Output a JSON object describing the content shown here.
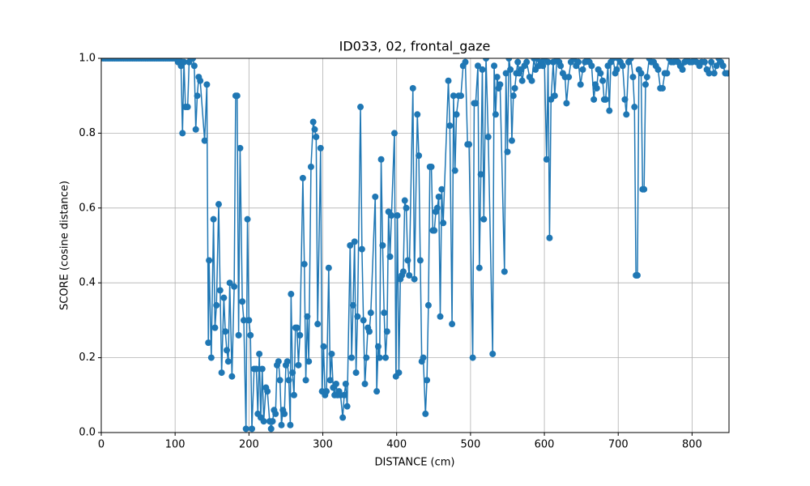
{
  "chart_data": {
    "type": "line",
    "title": "ID033, 02, frontal_gaze",
    "xlabel": "DISTANCE (cm)",
    "ylabel": "SCORE (cosine distance)",
    "xlim": [
      0,
      850
    ],
    "ylim": [
      0,
      1
    ],
    "grid": true,
    "xticks": [
      0,
      100,
      200,
      300,
      400,
      500,
      600,
      700,
      800
    ],
    "yticks": [
      {
        "value": 0,
        "label": "0.0"
      },
      0.2,
      0.4,
      0.6,
      0.8,
      {
        "value": 1,
        "label": "1.0"
      }
    ],
    "series": [
      {
        "color": "#1f77b4",
        "x": [
          0,
          3,
          6,
          9,
          12,
          15,
          18,
          21,
          24,
          27,
          30,
          33,
          36,
          39,
          42,
          45,
          48,
          51,
          54,
          57,
          60,
          63,
          66,
          69,
          72,
          75,
          78,
          81,
          84,
          87,
          90,
          93,
          96,
          99,
          102,
          104,
          106,
          108,
          110,
          112,
          114,
          117,
          119,
          121,
          124,
          126,
          128,
          130,
          132,
          134,
          140,
          143,
          145,
          146,
          149,
          152,
          154,
          156,
          159,
          161,
          163,
          166,
          168,
          170,
          172,
          174,
          177,
          180,
          182,
          184,
          186,
          188,
          191,
          193,
          196,
          198,
          200,
          202,
          204,
          207,
          210,
          212,
          214,
          216,
          218,
          220,
          223,
          225,
          228,
          230,
          232,
          234,
          236,
          238,
          240,
          242,
          244,
          246,
          248,
          250,
          252,
          254,
          256,
          257,
          259,
          261,
          263,
          265,
          267,
          269,
          273,
          275,
          277,
          279,
          281,
          284,
          287,
          289,
          291,
          293,
          297,
          299,
          301,
          303,
          305,
          308,
          310,
          312,
          314,
          316,
          318,
          320,
          322,
          324,
          327,
          329,
          331,
          333,
          337,
          339,
          341,
          343,
          345,
          347,
          351,
          353,
          355,
          357,
          359,
          361,
          363,
          365,
          371,
          373,
          375,
          377,
          379,
          381,
          383,
          385,
          387,
          389,
          391,
          393,
          397,
          399,
          401,
          403,
          405,
          407,
          409,
          411,
          413,
          415,
          417,
          422,
          424,
          428,
          430,
          432,
          434,
          436,
          439,
          441,
          443,
          445,
          447,
          449,
          451,
          453,
          455,
          457,
          459,
          461,
          463,
          470,
          472,
          475,
          477,
          479,
          481,
          484,
          487,
          490,
          493,
          496,
          498,
          503,
          505,
          507,
          510,
          512,
          514,
          516,
          518,
          521,
          524,
          530,
          532,
          534,
          536,
          538,
          540,
          546,
          548,
          550,
          552,
          554,
          556,
          558,
          560,
          562,
          564,
          566,
          568,
          570,
          573,
          576,
          580,
          583,
          586,
          588,
          590,
          593,
          596,
          598,
          600,
          603,
          605,
          607,
          609,
          612,
          614,
          617,
          620,
          622,
          625,
          628,
          630,
          633,
          636,
          640,
          643,
          646,
          649,
          652,
          655,
          658,
          661,
          664,
          667,
          669,
          671,
          673,
          676,
          679,
          681,
          683,
          686,
          688,
          690,
          693,
          696,
          698,
          700,
          703,
          706,
          709,
          711,
          714,
          717,
          720,
          722,
          724,
          726,
          728,
          731,
          733,
          735,
          737,
          739,
          742,
          745,
          748,
          751,
          754,
          757,
          760,
          763,
          766,
          769,
          772,
          775,
          778,
          781,
          784,
          787,
          790,
          793,
          797,
          800,
          803,
          806,
          810,
          813,
          817,
          820,
          823,
          826,
          830,
          833,
          836,
          839,
          842,
          845,
          848
        ],
        "values": [
          1,
          1,
          1,
          1,
          1,
          1,
          1,
          1,
          1,
          1,
          1,
          1,
          1,
          1,
          1,
          1,
          1,
          1,
          1,
          1,
          1,
          1,
          1,
          1,
          1,
          1,
          1,
          1,
          1,
          1,
          1,
          1,
          1,
          1,
          1,
          0.99,
          1,
          0.98,
          0.8,
          0.99,
          0.87,
          0.87,
          0.99,
          1,
          1,
          0.98,
          0.81,
          0.9,
          0.95,
          0.94,
          0.78,
          0.93,
          0.24,
          0.46,
          0.2,
          0.57,
          0.28,
          0.34,
          0.61,
          0.38,
          0.16,
          0.36,
          0.27,
          0.22,
          0.19,
          0.4,
          0.15,
          0.39,
          0.9,
          0.9,
          0.26,
          0.76,
          0.35,
          0.3,
          0.01,
          0.57,
          0.3,
          0.26,
          0.01,
          0.17,
          0.17,
          0.05,
          0.21,
          0.04,
          0.17,
          0.03,
          0.12,
          0.11,
          0.03,
          0.01,
          0.03,
          0.06,
          0.05,
          0.18,
          0.19,
          0.14,
          0.02,
          0.06,
          0.05,
          0.18,
          0.19,
          0.14,
          0.02,
          0.37,
          0.16,
          0.1,
          0.28,
          0.28,
          0.18,
          0.26,
          0.68,
          0.45,
          0.14,
          0.31,
          0.19,
          0.71,
          0.83,
          0.81,
          0.79,
          0.29,
          0.76,
          0.11,
          0.23,
          0.1,
          0.11,
          0.44,
          0.14,
          0.21,
          0.12,
          0.1,
          0.13,
          0.1,
          0.11,
          0.1,
          0.04,
          0.1,
          0.13,
          0.07,
          0.5,
          0.2,
          0.34,
          0.51,
          0.16,
          0.31,
          0.87,
          0.49,
          0.3,
          0.13,
          0.2,
          0.28,
          0.27,
          0.32,
          0.63,
          0.11,
          0.23,
          0.2,
          0.73,
          0.5,
          0.32,
          0.2,
          0.27,
          0.59,
          0.47,
          0.58,
          0.8,
          0.15,
          0.58,
          0.16,
          0.41,
          0.42,
          0.43,
          0.62,
          0.6,
          0.46,
          0.42,
          0.92,
          0.41,
          0.85,
          0.74,
          0.46,
          0.19,
          0.2,
          0.05,
          0.14,
          0.34,
          0.71,
          0.71,
          0.54,
          0.54,
          0.59,
          0.6,
          0.63,
          0.31,
          0.65,
          0.56,
          0.94,
          0.82,
          0.29,
          0.9,
          0.7,
          0.85,
          0.9,
          0.9,
          0.98,
          0.99,
          0.77,
          0.77,
          0.2,
          0.88,
          0.88,
          0.98,
          0.44,
          0.69,
          0.97,
          0.57,
          1,
          0.79,
          0.21,
          0.98,
          0.85,
          0.95,
          0.92,
          0.93,
          0.43,
          0.96,
          0.75,
          1,
          0.97,
          0.78,
          0.9,
          0.92,
          0.96,
          0.99,
          0.96,
          0.97,
          0.94,
          0.98,
          0.99,
          0.95,
          0.94,
          1,
          0.97,
          1,
          0.98,
          0.99,
          0.98,
          1,
          0.73,
          0.99,
          0.52,
          0.89,
          0.99,
          0.9,
          1,
          0.99,
          0.98,
          0.96,
          0.95,
          0.88,
          0.95,
          0.99,
          1,
          0.98,
          0.99,
          0.93,
          0.97,
          0.99,
          1,
          0.99,
          0.98,
          0.89,
          0.93,
          0.92,
          0.97,
          0.96,
          0.94,
          0.89,
          0.89,
          0.98,
          0.86,
          0.99,
          1,
          0.96,
          0.97,
          1,
          0.99,
          0.98,
          0.89,
          0.85,
          0.99,
          1,
          0.95,
          0.87,
          0.42,
          0.42,
          0.97,
          0.96,
          0.65,
          0.65,
          0.93,
          0.95,
          1,
          0.99,
          0.99,
          0.98,
          0.97,
          0.92,
          0.92,
          0.96,
          0.96,
          1,
          0.99,
          0.99,
          1,
          0.99,
          0.98,
          0.97,
          0.99,
          1,
          0.99,
          0.99,
          1,
          0.99,
          0.98,
          0.99,
          0.99,
          0.97,
          0.96,
          0.99,
          0.96,
          0.98,
          1,
          0.99,
          0.98,
          0.96,
          0.96
        ]
      }
    ]
  }
}
